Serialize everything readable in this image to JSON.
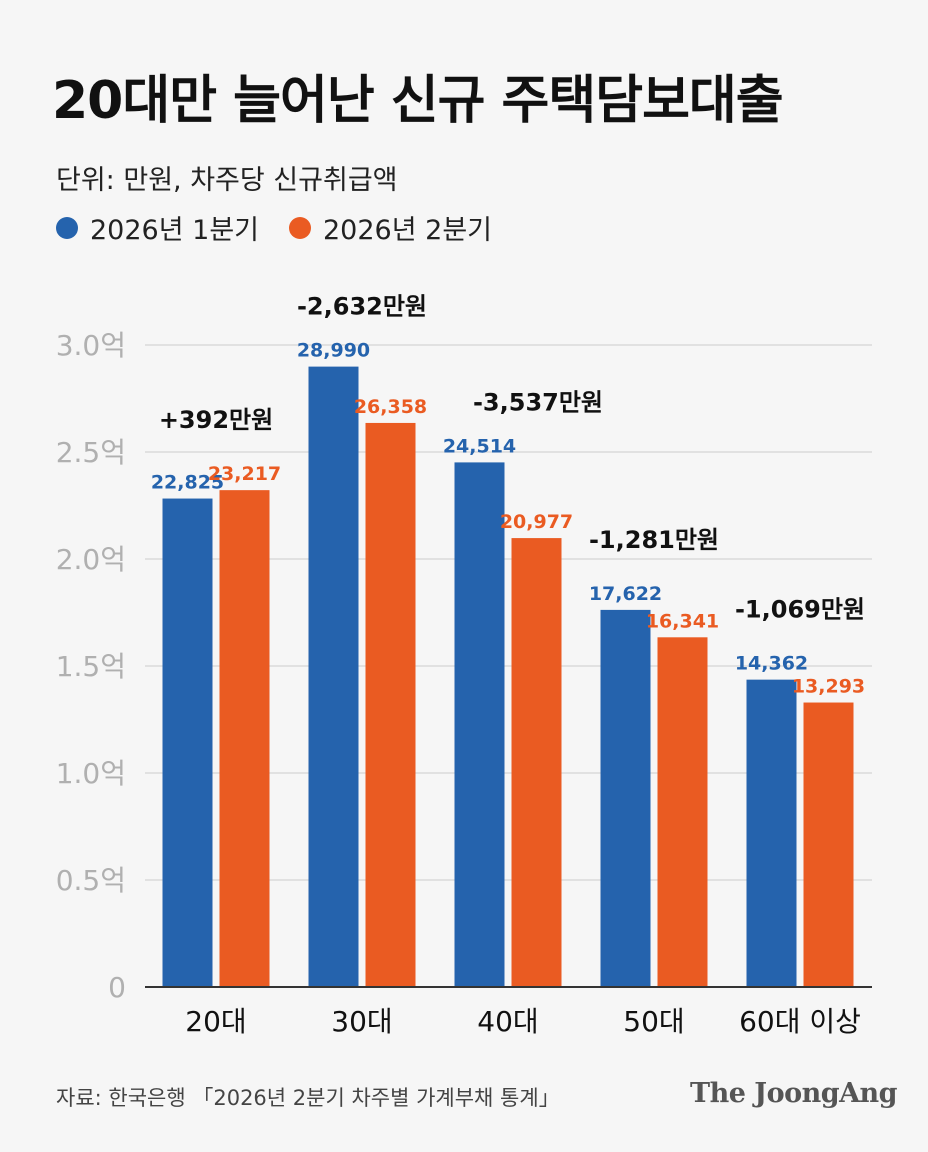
{
  "header": {
    "title": "20대만 늘어난 신규 주택담보대출",
    "subtitle": "단위: 만원, 차주당 신규취급액"
  },
  "legend": [
    {
      "label": "2026년 1분기",
      "color": "#2563ad"
    },
    {
      "label": "2026년 2분기",
      "color": "#ea5b22"
    }
  ],
  "chart_data": {
    "type": "bar",
    "categories": [
      "20대",
      "30대",
      "40대",
      "50대",
      "60대 이상"
    ],
    "series": [
      {
        "name": "2026년 1분기",
        "values": [
          22825,
          28990,
          24514,
          17622,
          14362
        ],
        "labels": [
          "22,825",
          "28,990",
          "24,514",
          "17,622",
          "14,362"
        ],
        "color": "#2563ad"
      },
      {
        "name": "2026년 2분기",
        "values": [
          23217,
          26358,
          20977,
          16341,
          13293
        ],
        "labels": [
          "23,217",
          "26,358",
          "20,977",
          "16,341",
          "13,293"
        ],
        "color": "#ea5b22"
      }
    ],
    "annotations": [
      "+392만원",
      "-2,632만원",
      "-3,537만원",
      "-1,281만원",
      "-1,069만원"
    ],
    "yticks": [
      {
        "value": 0,
        "label": "0"
      },
      {
        "value": 5000,
        "label": "0.5억"
      },
      {
        "value": 10000,
        "label": "1.0억"
      },
      {
        "value": 15000,
        "label": "1.5억"
      },
      {
        "value": 20000,
        "label": "2.0억"
      },
      {
        "value": 25000,
        "label": "2.5억"
      },
      {
        "value": 30000,
        "label": "3.0억"
      }
    ],
    "ylim": [
      0,
      30000
    ],
    "grid": true,
    "legend_position": "top-left"
  },
  "footer": {
    "source": "자료: 한국은행 「2026년 2분기 차주별 가계부채 통계」",
    "logo": "The JoongAng"
  },
  "colors": {
    "axis": "#333333",
    "grid": "#cccccc",
    "tick_label": "#b0b0b0",
    "annotation": "#111111",
    "background": "#f6f6f6"
  }
}
